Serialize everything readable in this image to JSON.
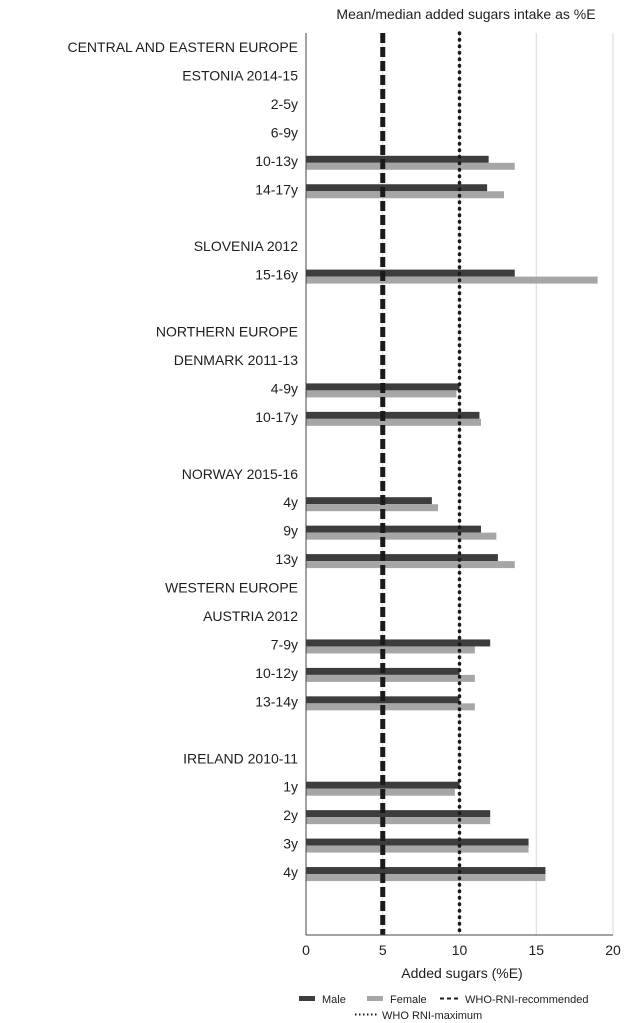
{
  "chart_data": {
    "type": "bar",
    "orientation": "horizontal",
    "title": "Mean/median added sugars intake as %E",
    "xlabel": "Added sugars (%E)",
    "xlim": [
      0,
      20
    ],
    "xticks": [
      0,
      5,
      10,
      15,
      20
    ],
    "grid": "vertical gridlines at each x tick",
    "legend_position": "bottom",
    "rows": [
      {
        "label": "CENTRAL AND EASTERN EUROPE",
        "kind": "header"
      },
      {
        "label": "ESTONIA 2014-15",
        "kind": "header"
      },
      {
        "label": "2-5y",
        "kind": "data",
        "male": null,
        "female": null
      },
      {
        "label": "6-9y",
        "kind": "data",
        "male": null,
        "female": null
      },
      {
        "label": "10-13y",
        "kind": "data",
        "male": 11.9,
        "female": 13.6
      },
      {
        "label": "14-17y",
        "kind": "data",
        "male": 11.8,
        "female": 12.9
      },
      {
        "label": "",
        "kind": "gap"
      },
      {
        "label": "SLOVENIA 2012",
        "kind": "header"
      },
      {
        "label": "15-16y",
        "kind": "data",
        "male": 13.6,
        "female": 19.0
      },
      {
        "label": "",
        "kind": "gap"
      },
      {
        "label": "NORTHERN EUROPE",
        "kind": "header"
      },
      {
        "label": "DENMARK 2011-13",
        "kind": "header"
      },
      {
        "label": "4-9y",
        "kind": "data",
        "male": 10.0,
        "female": 9.8
      },
      {
        "label": "10-17y",
        "kind": "data",
        "male": 11.3,
        "female": 11.4
      },
      {
        "label": "",
        "kind": "gap"
      },
      {
        "label": "NORWAY 2015-16",
        "kind": "header"
      },
      {
        "label": "4y",
        "kind": "data",
        "male": 8.2,
        "female": 8.6
      },
      {
        "label": "9y",
        "kind": "data",
        "male": 11.4,
        "female": 12.4
      },
      {
        "label": "13y",
        "kind": "data",
        "male": 12.5,
        "female": 13.6
      },
      {
        "label": "WESTERN EUROPE",
        "kind": "header"
      },
      {
        "label": "AUSTRIA 2012",
        "kind": "header"
      },
      {
        "label": "7-9y",
        "kind": "data",
        "male": 12.0,
        "female": 11.0
      },
      {
        "label": "10-12y",
        "kind": "data",
        "male": 10.0,
        "female": 11.0
      },
      {
        "label": "13-14y",
        "kind": "data",
        "male": 10.0,
        "female": 11.0
      },
      {
        "label": "",
        "kind": "gap"
      },
      {
        "label": "IRELAND 2010-11",
        "kind": "header"
      },
      {
        "label": "1y",
        "kind": "data",
        "male": 10.0,
        "female": 9.7
      },
      {
        "label": "2y",
        "kind": "data",
        "male": 12.0,
        "female": 12.0
      },
      {
        "label": "3y",
        "kind": "data",
        "male": 14.5,
        "female": 14.5
      },
      {
        "label": "4y",
        "kind": "data",
        "male": 15.6,
        "female": 15.6
      }
    ],
    "reference_lines": [
      {
        "name": "WHO-RNI-recommended",
        "x": 5,
        "style": "dashed"
      },
      {
        "name": "WHO RNI-maximum",
        "x": 10,
        "style": "dotted"
      }
    ],
    "series": [
      {
        "name": "Male",
        "color": "#3d3d3d"
      },
      {
        "name": "Female",
        "color": "#a6a6a6"
      }
    ]
  },
  "legend": {
    "male": "Male",
    "female": "Female",
    "recommended": "WHO-RNI-recommended",
    "maximum": "WHO RNI-maximum"
  }
}
